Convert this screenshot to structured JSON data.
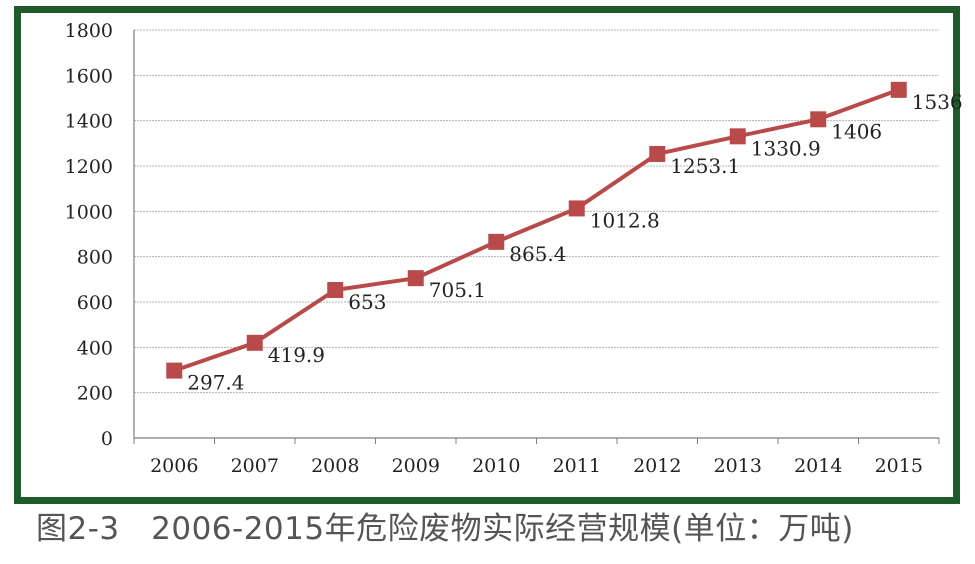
{
  "chart_data": {
    "type": "line",
    "categories": [
      "2006",
      "2007",
      "2008",
      "2009",
      "2010",
      "2011",
      "2012",
      "2013",
      "2014",
      "2015"
    ],
    "series": [
      {
        "values": [
          297.4,
          419.9,
          653,
          705.1,
          865.4,
          1012.8,
          1253.1,
          1330.9,
          1406,
          1536
        ],
        "labels": [
          "297.4",
          "419.9",
          "653",
          "705.1",
          "865.4",
          "1012.8",
          "1253.1",
          "1330.9",
          "1406",
          "1536"
        ],
        "color": "#b94a4a"
      }
    ],
    "ylim": [
      0,
      1800
    ],
    "yticks": [
      "0",
      "200",
      "400",
      "600",
      "800",
      "1000",
      "1200",
      "1400",
      "1600",
      "1800"
    ],
    "grid": true,
    "legend": "none",
    "frame_color": "#1f5a2a"
  },
  "caption": "图2-3　2006-2015年危险废物实际经营规模(单位：万吨)"
}
